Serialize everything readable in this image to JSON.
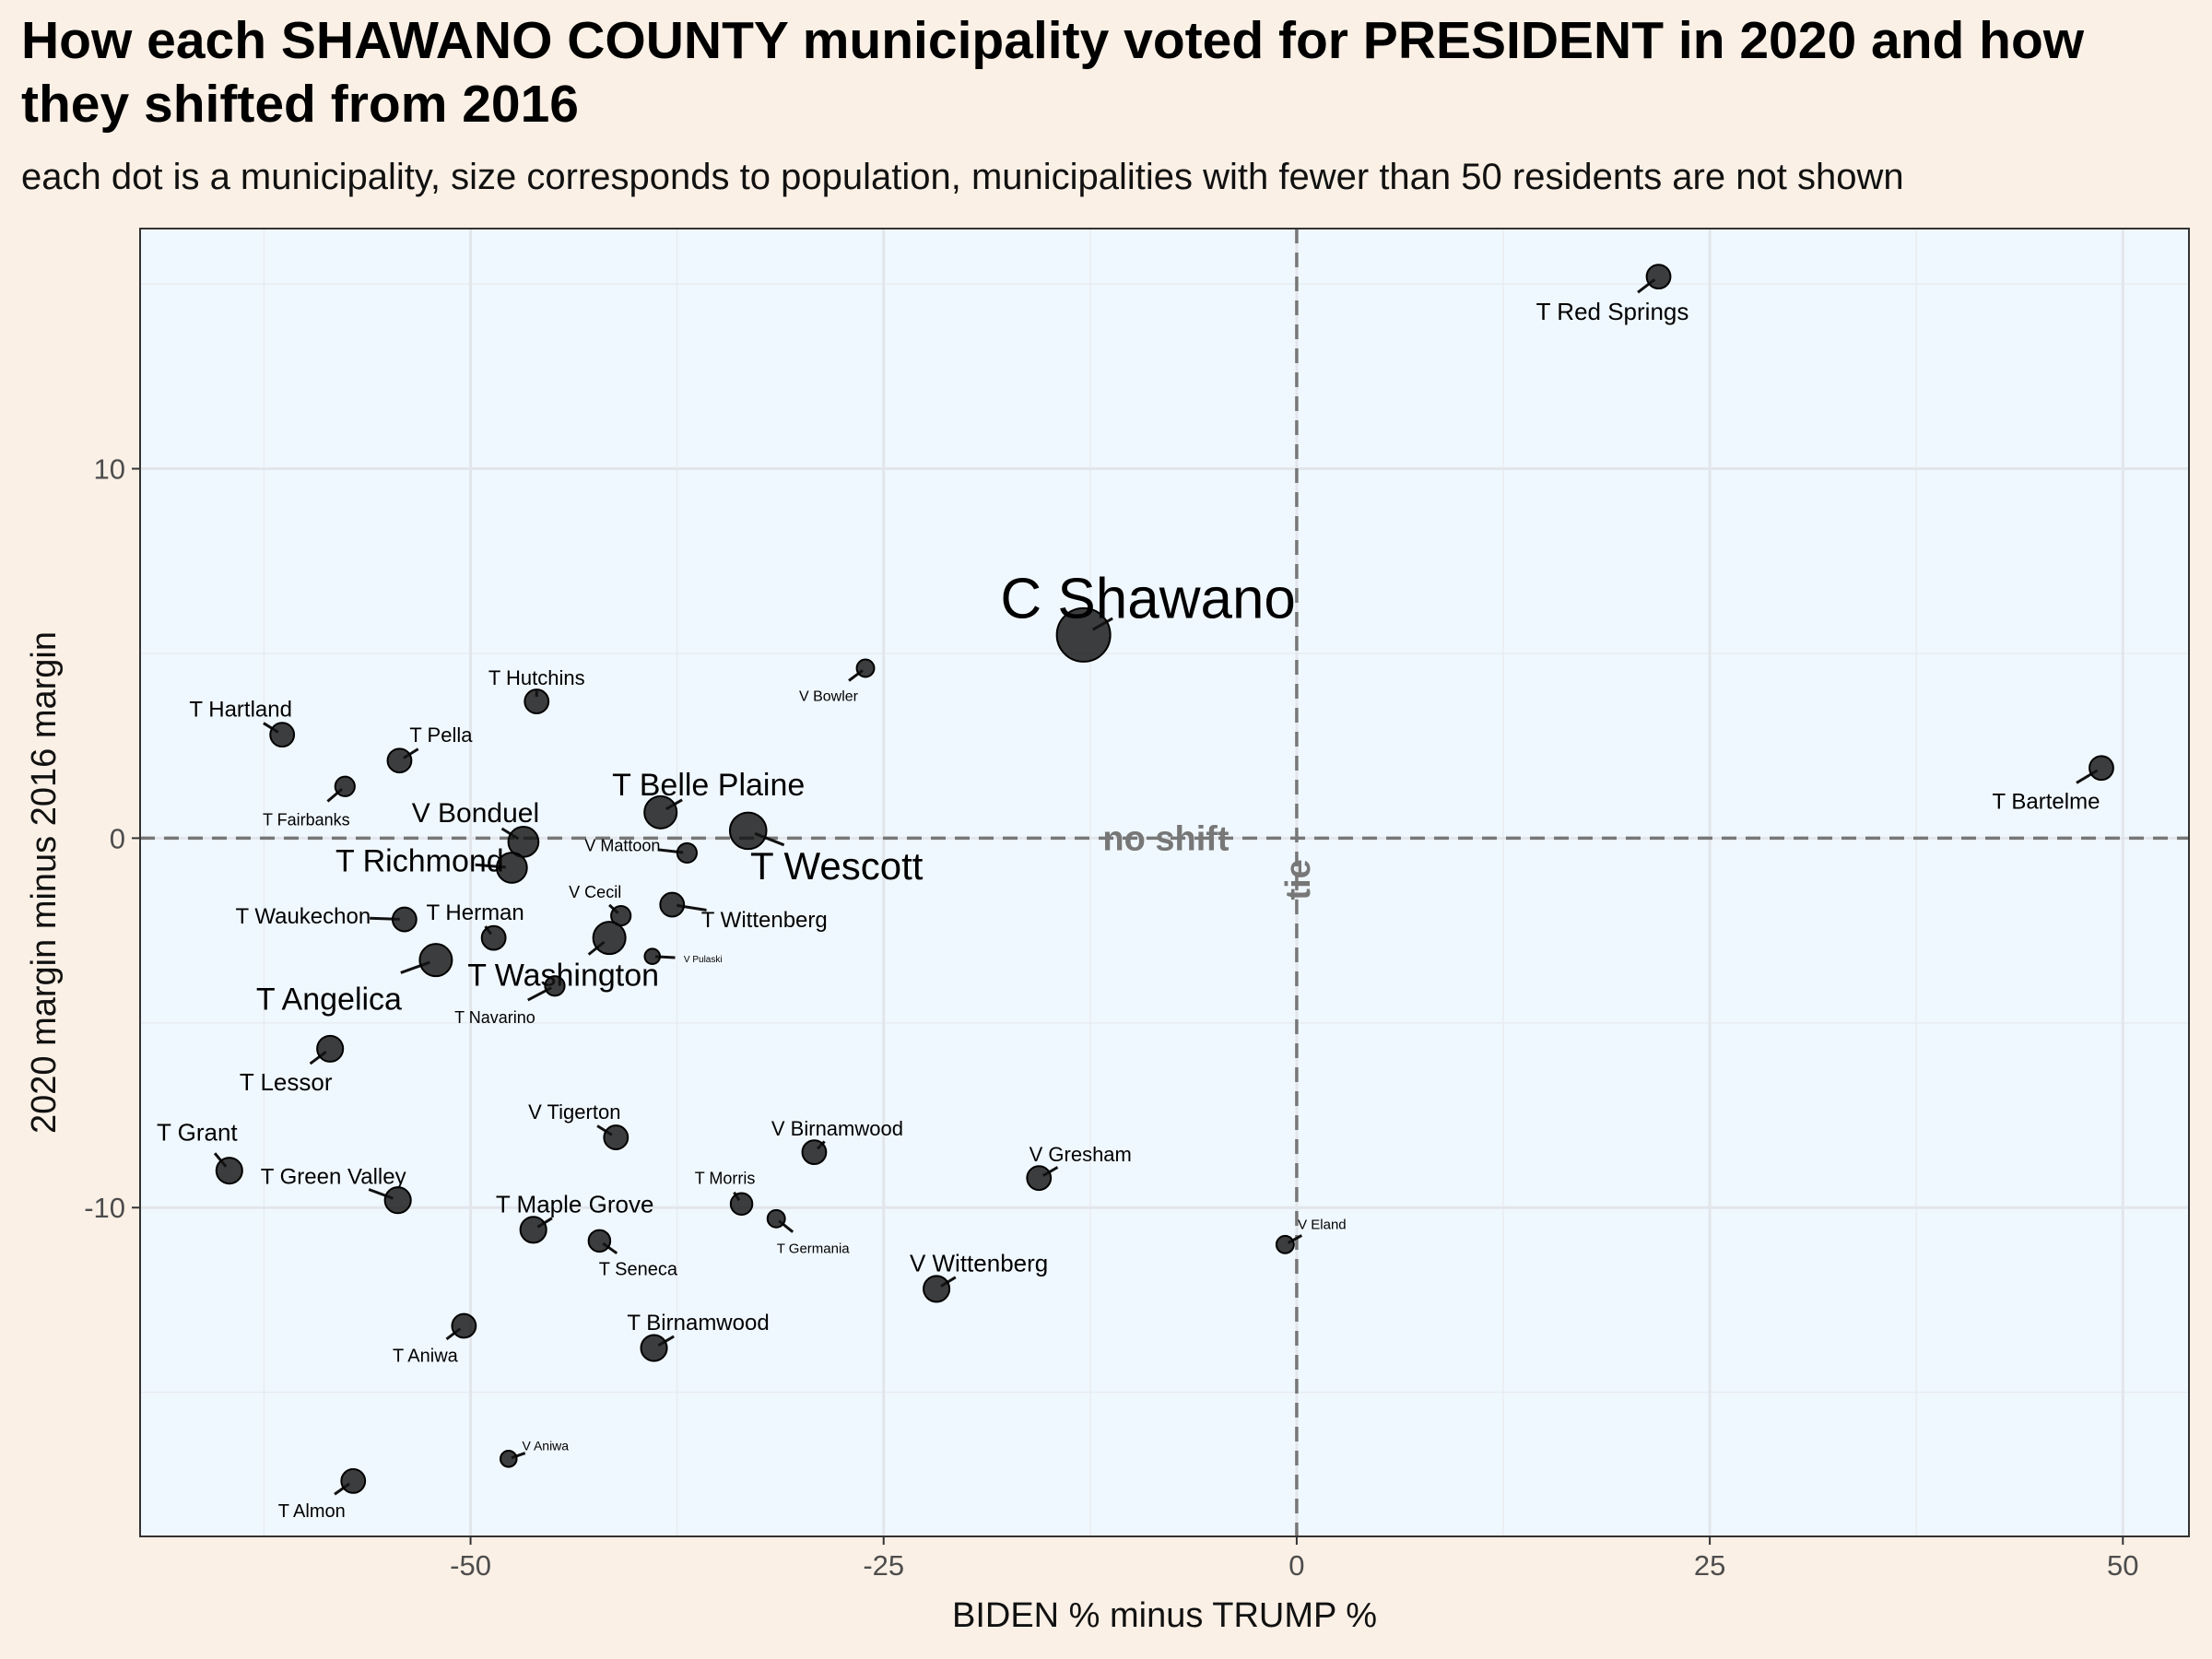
{
  "chart_data": {
    "type": "scatter",
    "title": "How each SHAWANO COUNTY municipality voted for PRESIDENT in 2020 and how they shifted from 2016",
    "subtitle": "each dot is a municipality, size corresponds to population, municipalities with fewer than 50 residents are not shown",
    "xlabel": "BIDEN % minus TRUMP %",
    "ylabel": "2020 margin minus 2016 margin",
    "xlim": [
      -70,
      54
    ],
    "ylim": [
      -18.9,
      16.5
    ],
    "x_ticks": [
      -50,
      -25,
      0,
      25,
      50
    ],
    "y_ticks": [
      -10,
      0,
      10
    ],
    "grid": true,
    "reference_lines": {
      "horizontal": {
        "y": 0,
        "label": "no shift"
      },
      "vertical": {
        "x": 0,
        "label": "tie"
      }
    },
    "points": [
      {
        "name": "T Red Springs",
        "x": 21.9,
        "y": 15.2,
        "size": 3
      },
      {
        "name": "C Shawano",
        "x": -12.9,
        "y": 5.5,
        "size": 10
      },
      {
        "name": "V Bowler",
        "x": -26.1,
        "y": 4.6,
        "size": 1.5
      },
      {
        "name": "T Hutchins",
        "x": -46.0,
        "y": 3.7,
        "size": 3
      },
      {
        "name": "T Hartland",
        "x": -61.4,
        "y": 2.8,
        "size": 3
      },
      {
        "name": "T Pella",
        "x": -54.3,
        "y": 2.1,
        "size": 3
      },
      {
        "name": "T Fairbanks",
        "x": -57.6,
        "y": 1.4,
        "size": 2
      },
      {
        "name": "T Bartelme",
        "x": 48.7,
        "y": 1.9,
        "size": 3
      },
      {
        "name": "T Belle Plaine",
        "x": -38.5,
        "y": 0.7,
        "size": 5
      },
      {
        "name": "V Bonduel",
        "x": -46.8,
        "y": -0.1,
        "size": 4.5
      },
      {
        "name": "T Wescott",
        "x": -33.2,
        "y": 0.2,
        "size": 6
      },
      {
        "name": "V Mattoon",
        "x": -36.9,
        "y": -0.4,
        "size": 2
      },
      {
        "name": "T Richmond",
        "x": -47.5,
        "y": -0.8,
        "size": 4.5
      },
      {
        "name": "V Cecil",
        "x": -40.9,
        "y": -2.1,
        "size": 2
      },
      {
        "name": "T Wittenberg",
        "x": -37.8,
        "y": -1.8,
        "size": 3
      },
      {
        "name": "T Waukechon",
        "x": -54.0,
        "y": -2.2,
        "size": 3
      },
      {
        "name": "T Herman",
        "x": -48.6,
        "y": -2.7,
        "size": 3
      },
      {
        "name": "T Washington",
        "x": -41.6,
        "y": -2.7,
        "size": 5
      },
      {
        "name": "V Pulaski",
        "x": -39.0,
        "y": -3.2,
        "size": 1
      },
      {
        "name": "T Angelica",
        "x": -52.1,
        "y": -3.3,
        "size": 5
      },
      {
        "name": "T Navarino",
        "x": -44.9,
        "y": -4.0,
        "size": 2
      },
      {
        "name": "T Lessor",
        "x": -58.5,
        "y": -5.7,
        "size": 3.5
      },
      {
        "name": "V Tigerton",
        "x": -41.2,
        "y": -8.1,
        "size": 3
      },
      {
        "name": "V Birnamwood",
        "x": -29.2,
        "y": -8.5,
        "size": 3
      },
      {
        "name": "V Gresham",
        "x": -15.6,
        "y": -9.2,
        "size": 3
      },
      {
        "name": "T Grant",
        "x": -64.6,
        "y": -9.0,
        "size": 3.5
      },
      {
        "name": "T Green Valley",
        "x": -54.4,
        "y": -9.8,
        "size": 3.5
      },
      {
        "name": "T Morris",
        "x": -33.6,
        "y": -9.9,
        "size": 2.5
      },
      {
        "name": "T Germania",
        "x": -31.5,
        "y": -10.3,
        "size": 1.5
      },
      {
        "name": "T Maple Grove",
        "x": -46.2,
        "y": -10.6,
        "size": 3.5
      },
      {
        "name": "T Seneca",
        "x": -42.2,
        "y": -10.9,
        "size": 2.5
      },
      {
        "name": "V Eland",
        "x": -0.7,
        "y": -11.0,
        "size": 1.5
      },
      {
        "name": "V Wittenberg",
        "x": -21.8,
        "y": -12.2,
        "size": 3.5
      },
      {
        "name": "T Aniwa",
        "x": -50.4,
        "y": -13.2,
        "size": 3
      },
      {
        "name": "T Birnamwood",
        "x": -38.9,
        "y": -13.8,
        "size": 3.5
      },
      {
        "name": "V Aniwa",
        "x": -47.7,
        "y": -16.8,
        "size": 1.2
      },
      {
        "name": "T Almon",
        "x": -57.1,
        "y": -17.4,
        "size": 3
      }
    ]
  }
}
